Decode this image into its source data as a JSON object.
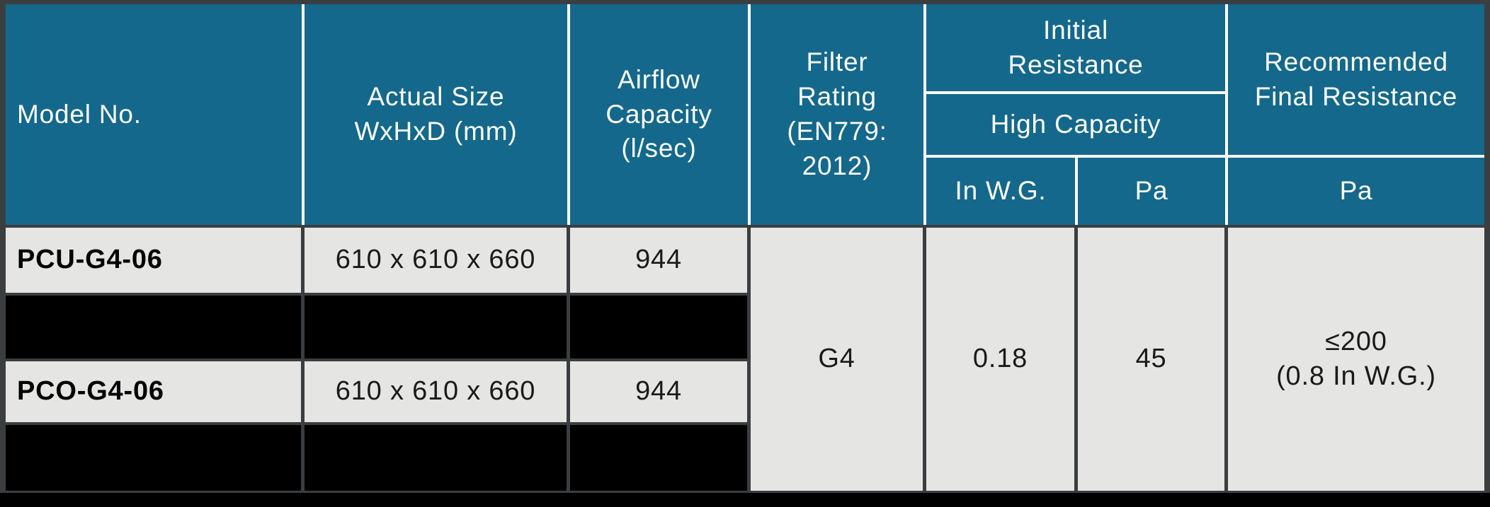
{
  "table": {
    "header": {
      "model_no": "Model No.",
      "actual_size": "Actual Size\nWxHxD (mm)",
      "airflow_capacity": "Airflow\nCapacity\n(l/sec)",
      "filter_rating": "Filter\nRating\n(EN779:\n2012)",
      "initial_resistance": "Initial\nResistance",
      "high_capacity": "High Capacity",
      "in_wg": "In W.G.",
      "pa": "Pa",
      "recommended_final_resistance": "Recommended\nFinal Resistance",
      "recommended_pa": "Pa"
    },
    "rows": [
      {
        "model": "PCU-G4-06",
        "size": "610 x 610 x 660",
        "airflow": "944",
        "redacted": false
      },
      {
        "model": "",
        "size": "",
        "airflow": "",
        "redacted": true
      },
      {
        "model": "PCO-G4-06",
        "size": "610 x 610 x 660",
        "airflow": "944",
        "redacted": false
      },
      {
        "model": "",
        "size": "",
        "airflow": "",
        "redacted": true
      }
    ],
    "shared_values": {
      "filter_rating": "G4",
      "initial_resistance_in_wg": "0.18",
      "initial_resistance_pa": "45",
      "recommended_final_resistance_pa": "≤200\n(0.8 In W.G.)"
    }
  },
  "colors": {
    "header_background": "#14688B",
    "header_text": "#FFFFFF",
    "cell_background": "#E5E5E3",
    "redacted_row": "#000000",
    "grid_lines": "#3B3E41",
    "header_lines": "#FFFFFF"
  }
}
